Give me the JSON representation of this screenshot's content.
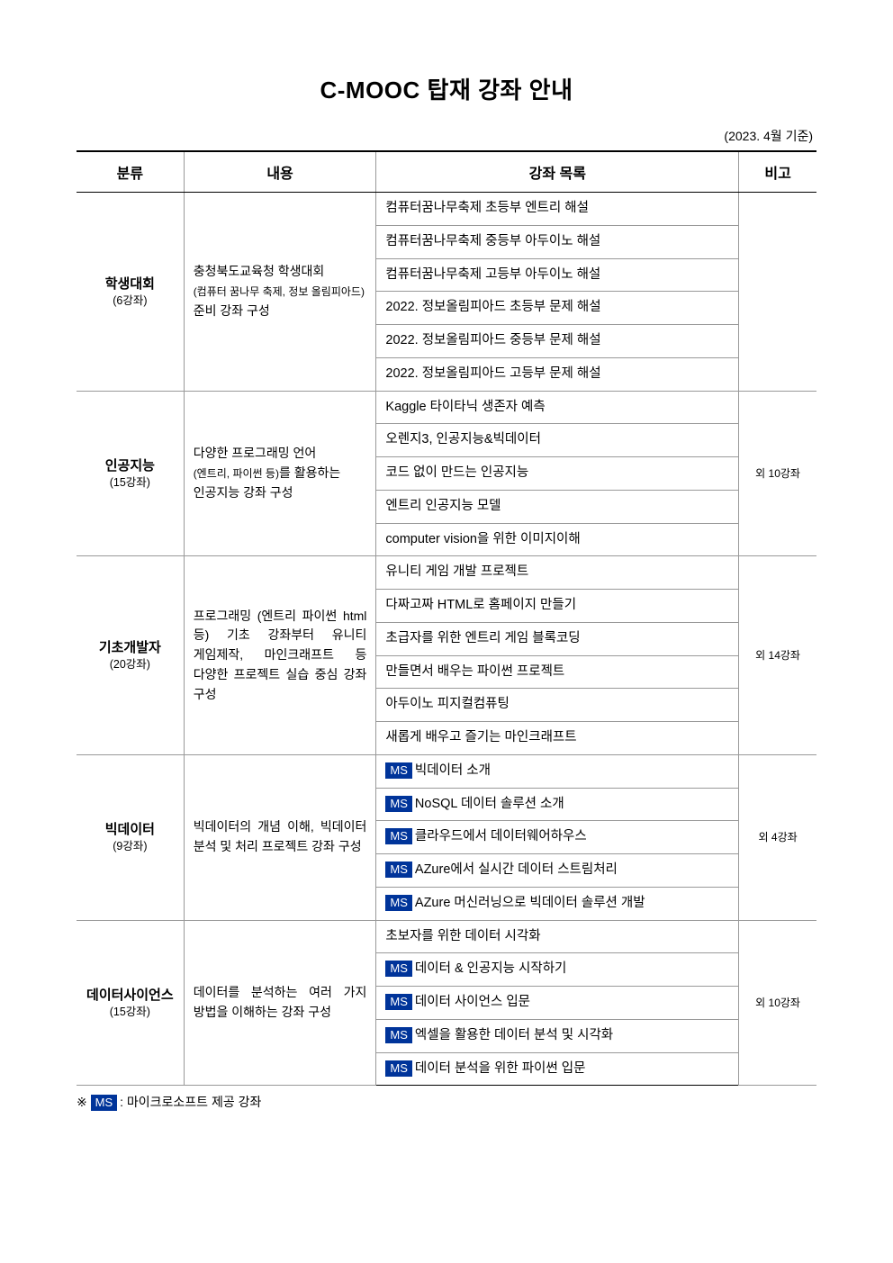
{
  "title": "C-MOOC 탑재 강좌 안내",
  "asof": "(2023. 4월 기준)",
  "colors": {
    "ms_badge_bg": "#00349a",
    "ms_badge_text": "#ffffff",
    "border_strong": "#000000",
    "border_light": "#999999",
    "background": "#ffffff",
    "text": "#000000"
  },
  "columns": [
    "분류",
    "내용",
    "강좌 목록",
    "비고"
  ],
  "sections": [
    {
      "cat_name": "학생대회",
      "cat_count": "(6강좌)",
      "desc_line1": "충청북도교육청 학생대회",
      "desc_sub": "(컴퓨터 꿈나무 축제, 정보 올림피아드)",
      "desc_line2": "준비 강좌 구성",
      "courses": [
        {
          "ms": false,
          "text": "컴퓨터꿈나무축제 초등부 엔트리 해설"
        },
        {
          "ms": false,
          "text": "컴퓨터꿈나무축제 중등부 아두이노 해설"
        },
        {
          "ms": false,
          "text": "컴퓨터꿈나무축제 고등부 아두이노 해설"
        },
        {
          "ms": false,
          "text": "2022. 정보올림피아드 초등부 문제 해설"
        },
        {
          "ms": false,
          "text": "2022. 정보올림피아드 중등부 문제 해설"
        },
        {
          "ms": false,
          "text": "2022. 정보올림피아드 고등부 문제 해설"
        }
      ],
      "note": ""
    },
    {
      "cat_name": "인공지능",
      "cat_count": "(15강좌)",
      "desc_line1": "다양한 프로그래밍 언어",
      "desc_sub": "(엔트리, 파이썬 등)",
      "desc_suffix": "를 활용하는",
      "desc_line2": "인공지능 강좌 구성",
      "courses": [
        {
          "ms": false,
          "text": "Kaggle 타이타닉 생존자 예측"
        },
        {
          "ms": false,
          "text": "오렌지3, 인공지능&빅데이터"
        },
        {
          "ms": false,
          "text": "코드 없이 만드는 인공지능"
        },
        {
          "ms": false,
          "text": "엔트리 인공지능 모델"
        },
        {
          "ms": false,
          "text": "computer vision을 위한 이미지이해"
        }
      ],
      "note": "외 10강좌"
    },
    {
      "cat_name": "기초개발자",
      "cat_count": "(20강좌)",
      "desc_full": "프로그래밍 (엔트리 파이썬 html 등) 기초 강좌부터 유니티 게임제작, 마인크래프트 등 다양한 프로젝트 실습 중심 강좌 구성",
      "courses": [
        {
          "ms": false,
          "text": "유니티 게임 개발 프로젝트"
        },
        {
          "ms": false,
          "text": "다짜고짜 HTML로 홈페이지 만들기"
        },
        {
          "ms": false,
          "text": "초급자를 위한 엔트리 게임 블록코딩"
        },
        {
          "ms": false,
          "text": "만들면서 배우는 파이썬 프로젝트"
        },
        {
          "ms": false,
          "text": "아두이노 피지컬컴퓨팅"
        },
        {
          "ms": false,
          "text": "새롭게 배우고 즐기는 마인크래프트"
        }
      ],
      "note": "외 14강좌"
    },
    {
      "cat_name": "빅데이터",
      "cat_count": "(9강좌)",
      "desc_full": "빅데이터의 개념 이해, 빅데이터 분석 및 처리 프로젝트 강좌 구성",
      "courses": [
        {
          "ms": true,
          "text": "빅데이터 소개"
        },
        {
          "ms": true,
          "text": "NoSQL 데이터 솔루션 소개"
        },
        {
          "ms": true,
          "text": "클라우드에서 데이터웨어하우스"
        },
        {
          "ms": true,
          "text": "AZure에서 실시간 데이터 스트림처리"
        },
        {
          "ms": true,
          "text": "AZure 머신러닝으로 빅데이터 솔루션 개발"
        }
      ],
      "note": "외 4강좌"
    },
    {
      "cat_name": "데이터사이언스",
      "cat_count": "(15강좌)",
      "desc_full": "데이터를 분석하는 여러 가지 방법을 이해하는 강좌 구성",
      "courses": [
        {
          "ms": false,
          "text": "초보자를 위한 데이터 시각화"
        },
        {
          "ms": true,
          "text": "데이터 & 인공지능 시작하기"
        },
        {
          "ms": true,
          "text": "데이터 사이언스 입문"
        },
        {
          "ms": true,
          "text": "엑셀을 활용한 데이터 분석 및 시각화"
        },
        {
          "ms": true,
          "text": "데이터 분석을 위한 파이썬 입문"
        }
      ],
      "note": "외 10강좌"
    }
  ],
  "ms_label": "MS",
  "footnote_prefix": "※",
  "footnote_text": ": 마이크로소프트 제공 강좌"
}
